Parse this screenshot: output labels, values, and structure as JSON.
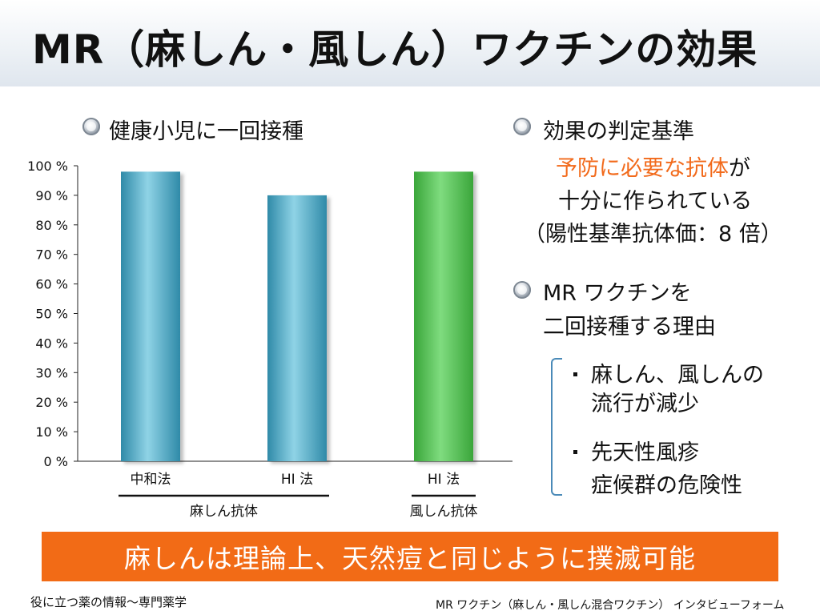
{
  "title": "MR（麻しん・風しん）ワクチンの効果",
  "chart_section": {
    "heading": "健康小児に一回接種"
  },
  "chart_data": {
    "type": "bar",
    "categories": [
      "中和法",
      "HI 法",
      "HI 法"
    ],
    "groups": [
      {
        "label": "麻しん抗体",
        "categories": [
          0,
          1
        ]
      },
      {
        "label": "風しん抗体",
        "categories": [
          2
        ]
      }
    ],
    "values": [
      98,
      90,
      98
    ],
    "bar_colors": [
      "#5eaec8",
      "#5eaec8",
      "#5cc45c"
    ],
    "ylim": [
      0,
      100
    ],
    "yticks": [
      "100 %",
      "90 %",
      "80 %",
      "70 %",
      "60 %",
      "50 %",
      "40 %",
      "30 %",
      "20 %",
      "10 %",
      "0 %"
    ],
    "grid": false,
    "xlabel": "",
    "ylabel": ""
  },
  "criteria": {
    "heading": "効果の判定基準",
    "line1_highlight": "予防に必要な抗体",
    "line1_rest": "が",
    "line2": "十分に作られている",
    "line3": "（陽性基準抗体価：8 倍）"
  },
  "reason": {
    "heading_line1": "MR ワクチンを",
    "heading_line2": "二回接種する理由",
    "items": [
      {
        "line1": "麻しん、風しんの",
        "line2": "流行が減少"
      },
      {
        "line1": "先天性風疹",
        "line2": "症候群の危険性"
      }
    ]
  },
  "banner": "麻しんは理論上、天然痘と同じように撲滅可能",
  "footer": {
    "left": "役に立つ薬の情報～専門薬学",
    "right": "MR ワクチン（麻しん・風しん混合ワクチン）  インタビューフォーム"
  },
  "colors": {
    "accent_orange": "#f26b16",
    "bracket_blue": "#4a8ab8"
  }
}
